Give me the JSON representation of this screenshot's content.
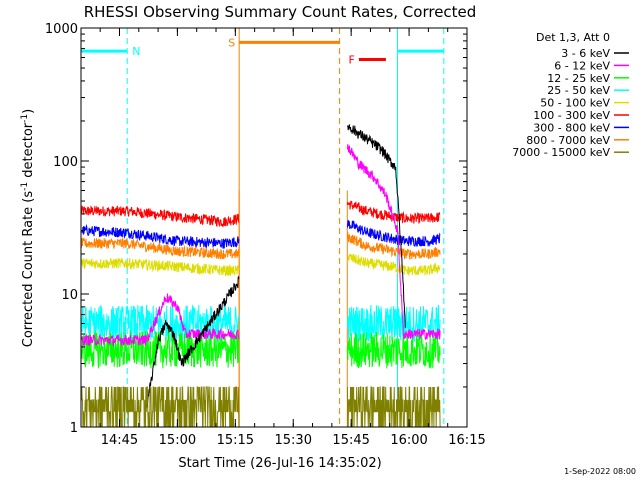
{
  "chart_data": {
    "type": "line",
    "title": "RHESSI Observing Summary Count Rates, Corrected",
    "xlabel": "Start Time (26-Jul-16 14:35:02)",
    "ylabel_main": "Corrected Count Rate (s",
    "ylabel_sup1": "-1",
    "ylabel_mid": " detector",
    "ylabel_sup2": "-1",
    "ylabel_end": ")",
    "yscale": "log",
    "ylim": [
      1,
      1000
    ],
    "xlim": [
      "14:35:02",
      "16:15:00"
    ],
    "x_ticks": [
      "14:45",
      "15:00",
      "15:15",
      "15:30",
      "15:45",
      "16:00",
      "16:15"
    ],
    "y_ticks": [
      "1",
      "10",
      "100",
      "1000"
    ],
    "footer_date": "1-Sep-2022 08:00",
    "legend": {
      "header": "Det 1,3, Att 0",
      "entries": [
        {
          "name": "3 - 6 keV",
          "color": "#000000"
        },
        {
          "name": "6 - 12 keV",
          "color": "#ff00ff"
        },
        {
          "name": "12 - 25 keV",
          "color": "#00ff00"
        },
        {
          "name": "25 - 50 keV",
          "color": "#00ffff"
        },
        {
          "name": "50 - 100 keV",
          "color": "#dddd00"
        },
        {
          "name": "100 - 300 keV",
          "color": "#ff0000"
        },
        {
          "name": "300 - 800 keV",
          "color": "#0000ff"
        },
        {
          "name": "800 - 7000 keV",
          "color": "#ff8000"
        },
        {
          "name": "7000 - 15000 keV",
          "color": "#808000"
        }
      ]
    },
    "intervals": {
      "night": {
        "label": "N",
        "color": "#00ffff",
        "start": "14:35:02",
        "end": "14:47",
        "start2": "15:57",
        "end2": "16:09"
      },
      "saa": {
        "label": "S",
        "color": "#ff8000",
        "start": "15:16",
        "end": "15:42"
      },
      "flare": {
        "label": "F",
        "color": "#ff0000",
        "start": "15:47",
        "end": "15:54"
      }
    },
    "gap_edges": [
      "15:16",
      "15:44"
    ],
    "series": [
      {
        "name": "100 - 300 keV",
        "color": "#ff0000",
        "keys": [
          [
            0,
            42
          ],
          [
            12,
            42
          ],
          [
            25,
            38
          ],
          [
            37,
            35
          ],
          [
            41,
            37
          ],
          [
            69,
            48
          ],
          [
            74,
            42
          ],
          [
            81,
            38
          ],
          [
            84,
            37
          ],
          [
            90,
            37
          ],
          [
            93,
            38
          ]
        ]
      },
      {
        "name": "300 - 800 keV",
        "color": "#0000ff",
        "keys": [
          [
            0,
            30
          ],
          [
            12,
            29
          ],
          [
            25,
            25
          ],
          [
            37,
            24
          ],
          [
            41,
            25
          ],
          [
            69,
            34
          ],
          [
            74,
            29
          ],
          [
            81,
            26
          ],
          [
            84,
            25
          ],
          [
            90,
            25
          ],
          [
            93,
            26
          ]
        ]
      },
      {
        "name": "800 - 7000 keV",
        "color": "#ff8000",
        "keys": [
          [
            0,
            24
          ],
          [
            12,
            24
          ],
          [
            25,
            21
          ],
          [
            37,
            20
          ],
          [
            41,
            20
          ],
          [
            69,
            27
          ],
          [
            74,
            23
          ],
          [
            81,
            21
          ],
          [
            84,
            20
          ],
          [
            90,
            20
          ],
          [
            93,
            21
          ]
        ]
      },
      {
        "name": "50 - 100 keV",
        "color": "#dddd00",
        "keys": [
          [
            0,
            17
          ],
          [
            12,
            17
          ],
          [
            25,
            16
          ],
          [
            37,
            15
          ],
          [
            41,
            15
          ],
          [
            69,
            19
          ],
          [
            74,
            17
          ],
          [
            81,
            16
          ],
          [
            84,
            15
          ],
          [
            90,
            15
          ],
          [
            93,
            16
          ]
        ]
      },
      {
        "name": "25 - 50 keV",
        "color": "#00ffff",
        "keys": [
          [
            0,
            6
          ],
          [
            12,
            6
          ],
          [
            25,
            6
          ],
          [
            41,
            6
          ],
          [
            69,
            6
          ],
          [
            93,
            6
          ]
        ]
      },
      {
        "name": "12 - 25 keV",
        "color": "#00ff00",
        "keys": [
          [
            0,
            3.8
          ],
          [
            41,
            3.8
          ],
          [
            69,
            3.8
          ],
          [
            93,
            3.8
          ]
        ]
      },
      {
        "name": "6 - 12 keV",
        "color": "#ff00ff",
        "keys": [
          [
            0,
            4.5
          ],
          [
            17,
            4.5
          ],
          [
            20,
            7
          ],
          [
            22,
            9.5
          ],
          [
            25,
            8
          ],
          [
            27,
            5
          ],
          [
            41,
            5
          ],
          [
            69,
            130
          ],
          [
            72,
            95
          ],
          [
            76,
            75
          ],
          [
            79,
            55
          ],
          [
            82,
            30
          ],
          [
            83.5,
            5
          ],
          [
            93,
            5
          ]
        ]
      },
      {
        "name": "3 - 6 keV",
        "color": "#000000",
        "keys": [
          [
            17,
            1.4
          ],
          [
            20,
            4.5
          ],
          [
            22,
            6
          ],
          [
            24,
            5
          ],
          [
            26,
            3
          ],
          [
            69,
            185
          ],
          [
            72,
            160
          ],
          [
            75,
            140
          ],
          [
            78,
            120
          ],
          [
            80,
            100
          ],
          [
            81.5,
            90
          ],
          [
            83,
            20
          ],
          [
            84,
            6
          ]
        ]
      },
      {
        "name": "7000 - 15000 keV",
        "color": "#808000",
        "keys": [
          [
            0,
            1.6
          ],
          [
            41,
            1.6
          ],
          [
            69,
            1.6
          ],
          [
            93,
            1.6
          ]
        ]
      }
    ]
  }
}
